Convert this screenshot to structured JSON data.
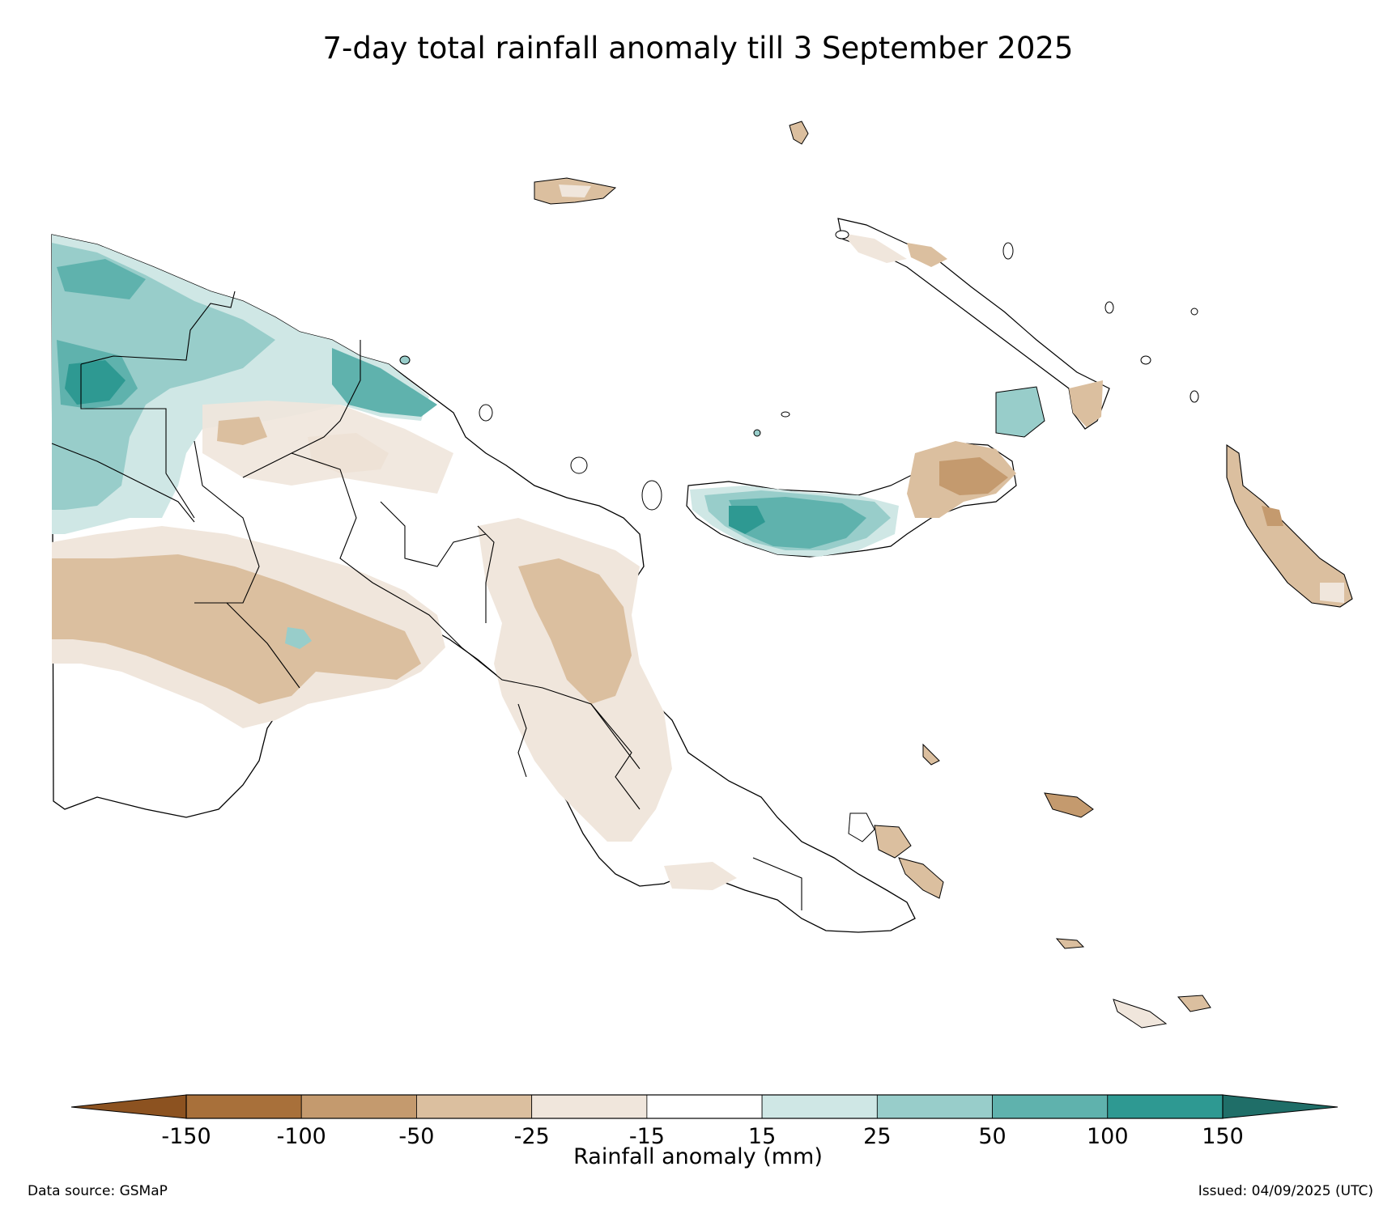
{
  "title": "7-day total rainfall anomaly till 3 September 2025",
  "colorbar": {
    "label": "Rainfall anomaly (mm)",
    "ticks": [
      "-150",
      "-100",
      "-50",
      "-25",
      "-15",
      "15",
      "25",
      "50",
      "100",
      "150"
    ],
    "colors": {
      "below_min": "#8c5220",
      "bins": [
        "#a8703a",
        "#c49a6e",
        "#dbbf9f",
        "#f0e6dc",
        "#ffffff",
        "#cfe7e5",
        "#98cdca",
        "#5fb2ad",
        "#2e9992"
      ],
      "above_max": "#1f6e68"
    }
  },
  "footer": {
    "source": "Data source: GSMaP",
    "issued": "Issued: 04/09/2025 (UTC)"
  },
  "palette": {
    "coast": "#000000",
    "border": "#000000",
    "background": "#ffffff"
  }
}
